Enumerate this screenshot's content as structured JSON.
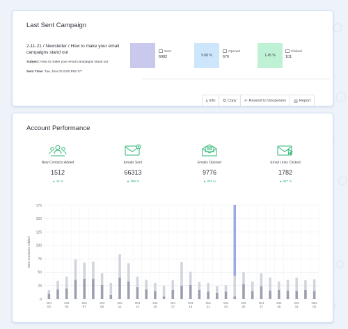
{
  "last_campaign": {
    "section_title": "Last Sent Campaign",
    "name": "2-11-21 / Newsletter / How to make your email campaigns stand out",
    "subject_label": "Subject:",
    "subject": "How to make your email campaigns stand out",
    "sent_time_label": "Sent Time:",
    "sent_time": "Tue, Nov 02 9:00 PM IST",
    "stats": [
      {
        "label": "Sent",
        "value": "6982",
        "box_text": "",
        "color": "#c9c9ee"
      },
      {
        "label": "Opened",
        "value": "676",
        "box_text": "9.68 %",
        "color": "#cde6fc"
      },
      {
        "label": "Clicked",
        "value": "101",
        "box_text": "1.45 %",
        "color": "#bff2d5"
      }
    ],
    "actions": [
      {
        "icon": "info-icon",
        "label": "Info"
      },
      {
        "icon": "copy-icon",
        "label": "Copy"
      },
      {
        "icon": "resend-icon",
        "label": "Resend to Unopeners"
      },
      {
        "icon": "report-icon",
        "label": "Report"
      }
    ]
  },
  "account_performance": {
    "section_title": "Account Performance",
    "metrics": [
      {
        "icon": "contacts-icon",
        "label": "New Contacts Added",
        "value": "1512",
        "change": "11 %"
      },
      {
        "icon": "email-sent-icon",
        "label": "Emails Sent",
        "value": "66313",
        "change": "366 %"
      },
      {
        "icon": "email-opened-icon",
        "label": "Emails Opened",
        "value": "9776",
        "change": "251 %"
      },
      {
        "icon": "email-clicked-icon",
        "label": "Email Links Clicked",
        "value": "1782",
        "change": "847 %"
      }
    ],
    "accent_color": "#2bb673"
  },
  "chart_data": {
    "type": "bar",
    "ylabel": "New Contacts Added",
    "ylim": [
      0,
      175
    ],
    "yticks": [
      0,
      25,
      50,
      75,
      100,
      125,
      150,
      175
    ],
    "grid": true,
    "tick_labels": [
      [
        "Oct",
        "03"
      ],
      [
        "Oct",
        "05"
      ],
      [
        "Oct",
        "07"
      ],
      [
        "Oct",
        "09"
      ],
      [
        "Oct",
        "11"
      ],
      [
        "Oct",
        "13"
      ],
      [
        "Oct",
        "15"
      ],
      [
        "Oct",
        "17"
      ],
      [
        "Oct",
        "19"
      ],
      [
        "Oct",
        "21"
      ],
      [
        "Oct",
        "23"
      ],
      [
        "Oct",
        "25"
      ],
      [
        "Oct",
        "27"
      ],
      [
        "Oct",
        "29"
      ],
      [
        "Oct",
        "31"
      ],
      [
        "Nov",
        "02"
      ]
    ],
    "categories": [
      "Oct 03",
      "Oct 04",
      "Oct 05",
      "Oct 06",
      "Oct 07",
      "Oct 08",
      "Oct 09",
      "Oct 10",
      "Oct 11",
      "Oct 12",
      "Oct 13",
      "Oct 14",
      "Oct 15",
      "Oct 16",
      "Oct 17",
      "Oct 18",
      "Oct 19",
      "Oct 20",
      "Oct 21",
      "Oct 22",
      "Oct 23",
      "Oct 24",
      "Oct 25",
      "Oct 26",
      "Oct 27",
      "Oct 28",
      "Oct 29",
      "Oct 30",
      "Oct 31",
      "Nov 01",
      "Nov 02"
    ],
    "series": [
      {
        "color": "#9b9fb0",
        "values": [
          10,
          18,
          20,
          36,
          38,
          38,
          26,
          8,
          40,
          33,
          22,
          18,
          15,
          5,
          17,
          25,
          26,
          17,
          14,
          12,
          14,
          5,
          28,
          15,
          24,
          16,
          17,
          16,
          15,
          17,
          15
        ]
      },
      {
        "color": "#d2d5de",
        "values": [
          7,
          16,
          22,
          38,
          30,
          32,
          22,
          22,
          44,
          34,
          20,
          18,
          15,
          20,
          18,
          44,
          25,
          15,
          16,
          12,
          12,
          38,
          22,
          18,
          24,
          24,
          16,
          20,
          25,
          18,
          22
        ]
      },
      {
        "color": "#9aaae6",
        "values": [
          0,
          0,
          0,
          0,
          0,
          0,
          0,
          0,
          0,
          0,
          0,
          0,
          0,
          0,
          0,
          0,
          0,
          0,
          0,
          0,
          0,
          132,
          0,
          0,
          0,
          0,
          0,
          0,
          0,
          0,
          0
        ]
      }
    ]
  }
}
